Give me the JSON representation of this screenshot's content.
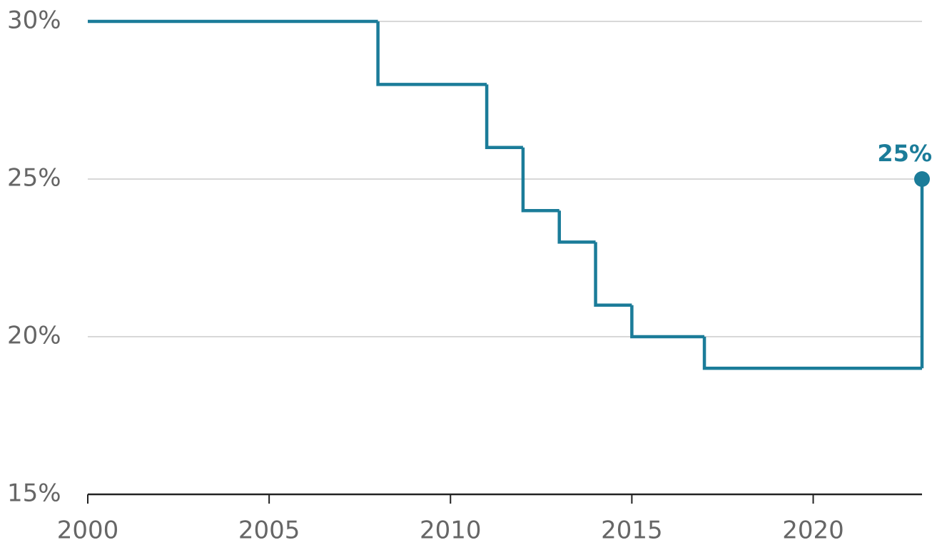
{
  "chart_data": {
    "type": "line",
    "step": "post",
    "x": [
      2000,
      2008,
      2011,
      2012,
      2013,
      2014,
      2015,
      2017,
      2023
    ],
    "values": [
      30,
      28,
      26,
      24,
      23,
      21,
      20,
      19,
      25
    ],
    "value_labels": [
      null,
      null,
      null,
      null,
      null,
      null,
      null,
      null,
      "25%"
    ],
    "color": "#1b7c99",
    "xlim": [
      2000,
      2023
    ],
    "xticks": [
      2000,
      2005,
      2010,
      2015,
      2020
    ],
    "ylim": [
      15,
      30
    ],
    "yticks": [
      {
        "value": 15,
        "label": "15%"
      },
      {
        "value": 20,
        "label": "20%"
      },
      {
        "value": 25,
        "label": "25%"
      },
      {
        "value": 30,
        "label": "30%"
      }
    ],
    "grid": true
  }
}
